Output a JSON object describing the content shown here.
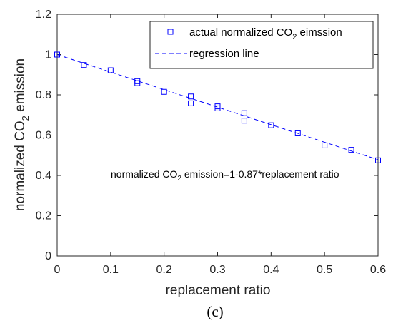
{
  "chart_data": {
    "type": "scatter",
    "xlabel": "replacement ratio",
    "ylabel": "normalized CO2 emission",
    "ylabel_parts": {
      "pre": "normalized CO",
      "sub": "2",
      "post": " emission"
    },
    "xlim": [
      0,
      0.6
    ],
    "ylim": [
      0,
      1.2
    ],
    "xticks": [
      "0",
      "0.1",
      "0.2",
      "0.3",
      "0.4",
      "0.5",
      "0.6"
    ],
    "yticks": [
      "0",
      "0.2",
      "0.4",
      "0.6",
      "0.8",
      "1",
      "1.2"
    ],
    "grid": false,
    "legend_position": "top-right",
    "series": [
      {
        "name": "actual normalized CO2 eimssion",
        "name_parts": {
          "pre": "actual normalized CO",
          "sub": "2",
          "post": " eimssion"
        },
        "marker": "square",
        "color": "#0000ff",
        "x": [
          0,
          0.05,
          0.1,
          0.15,
          0.15,
          0.2,
          0.25,
          0.25,
          0.3,
          0.3,
          0.35,
          0.35,
          0.4,
          0.45,
          0.5,
          0.55,
          0.6
        ],
        "y": [
          1.0,
          0.948,
          0.922,
          0.868,
          0.858,
          0.815,
          0.792,
          0.758,
          0.743,
          0.733,
          0.709,
          0.672,
          0.649,
          0.609,
          0.549,
          0.527,
          0.475
        ]
      },
      {
        "name": "regression line",
        "style": "dashed",
        "color": "#0000ff",
        "intercept": 1,
        "slope": -0.87
      }
    ],
    "annotation": {
      "text": "normalized CO2 emission=1-0.87*replacement ratio",
      "parts": {
        "pre": "normalized CO",
        "sub": "2",
        "post": " emission=1-0.87*replacement ratio"
      }
    },
    "panel_label": "(c)"
  }
}
